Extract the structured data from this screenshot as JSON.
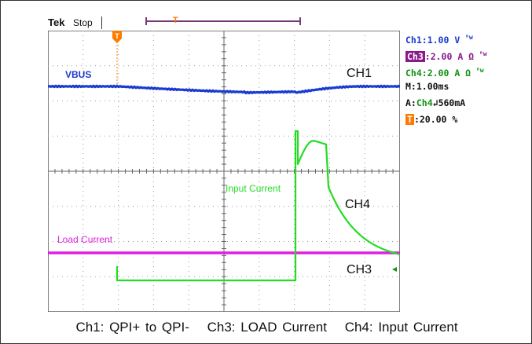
{
  "header": {
    "brand": "Tek",
    "run_state": "Stop",
    "record_trigger_marker": "T"
  },
  "readouts": {
    "ch1": {
      "label": "Ch1",
      "value": ":1.00 V",
      "suffix": "ᴮw"
    },
    "ch3": {
      "label": "Ch3",
      "value": ":2.00 A Ω",
      "suffix": "ᴮw"
    },
    "ch4": {
      "label": "Ch4",
      "value": ":2.00 A Ω",
      "suffix": "ᴮw"
    },
    "timebase": "M:1.00ms",
    "trigger_prefix": "A:",
    "trigger_source": "Ch4",
    "trigger_slope": "↲",
    "trigger_level": "560mA",
    "trigger_pos_tag": "T",
    "trigger_pos_value": ":20.00 %"
  },
  "screen": {
    "trigger_marker": "T",
    "annotations": {
      "vbus": "VBUS",
      "ch1": "CH1",
      "input_current": "Input Current",
      "ch4": "CH4",
      "load_current": "Load Current",
      "ch3": "CH3"
    }
  },
  "colors": {
    "ch1": "#1a3ad0",
    "ch3": "#e020e0",
    "ch4": "#22dd22",
    "trigger": "#ff7a00",
    "grid": "#9a9a9a"
  },
  "caption": {
    "ch1": "Ch1: QPI+ to QPI-",
    "ch3": "Ch3: LOAD Current",
    "ch4": "Ch4: Input Current"
  }
}
